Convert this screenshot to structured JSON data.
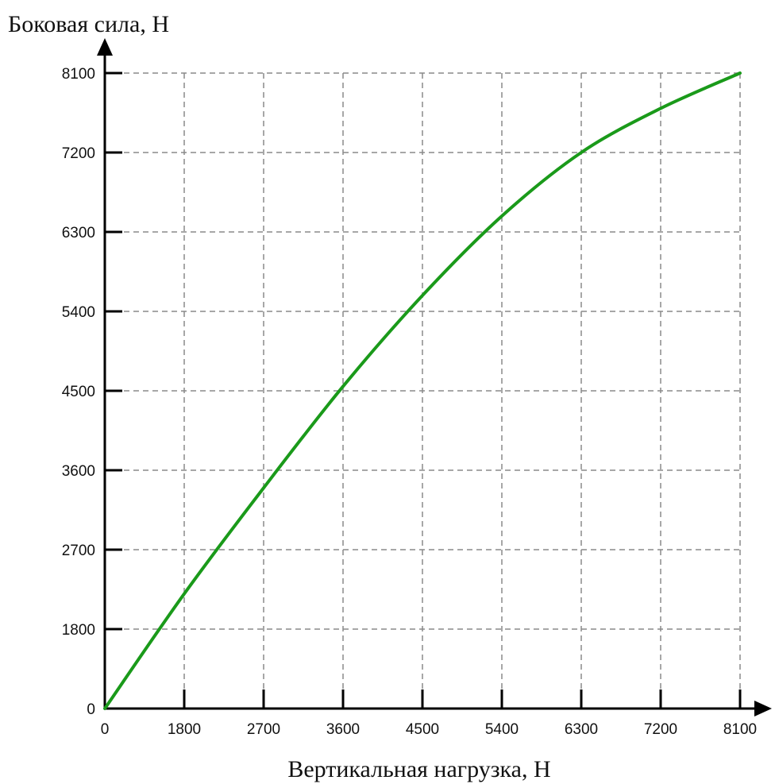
{
  "chart_data": {
    "type": "line",
    "title": "",
    "xlabel": "Вертикальная нагрузка, Н",
    "ylabel": "Боковая сила, Н",
    "x_ticks": [
      "0",
      "1800",
      "2700",
      "3600",
      "4500",
      "5400",
      "6300",
      "7200",
      "8100"
    ],
    "y_ticks": [
      "0",
      "1800",
      "2700",
      "3600",
      "4500",
      "5400",
      "6300",
      "7200",
      "8100"
    ],
    "grid": true,
    "series": [
      {
        "color": "#1a9a1a",
        "x": [
          0,
          1800,
          2700,
          3600,
          4500,
          5400,
          6300,
          7200,
          8100
        ],
        "y": [
          0,
          2200,
          3400,
          4550,
          5580,
          6480,
          7200,
          7700,
          8100
        ]
      }
    ]
  }
}
